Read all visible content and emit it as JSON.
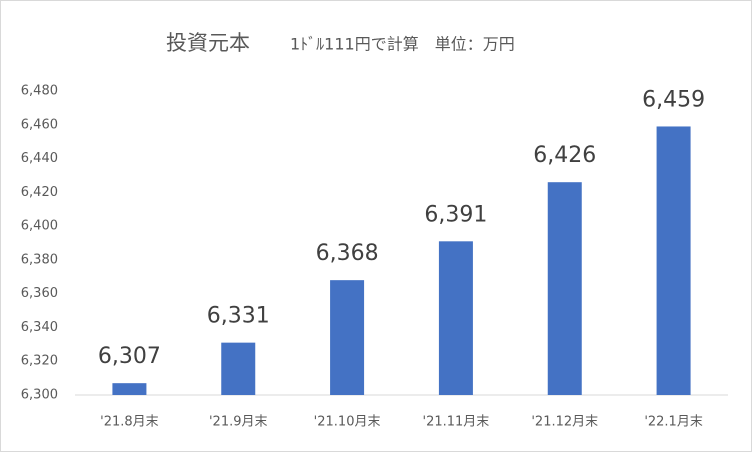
{
  "chart_data": {
    "type": "bar",
    "title": "投資元本",
    "subtitle": "1ﾄﾞﾙ111円で計算　単位：万円",
    "categories": [
      "'21.8月末",
      "'21.9月末",
      "'21.10月末",
      "'21.11月末",
      "'21.12月末",
      "'22.1月末"
    ],
    "values": [
      6307,
      6331,
      6368,
      6391,
      6426,
      6459
    ],
    "value_labels": [
      "6,307",
      "6,331",
      "6,368",
      "6,391",
      "6,426",
      "6,459"
    ],
    "color": "#4472c4",
    "ylim": [
      6300,
      6480
    ],
    "yticks": [
      {
        "value": 6300,
        "label": "6,300"
      },
      {
        "value": 6320,
        "label": "6,320"
      },
      {
        "value": 6340,
        "label": "6,340"
      },
      {
        "value": 6360,
        "label": "6,360"
      },
      {
        "value": 6380,
        "label": "6,380"
      },
      {
        "value": 6400,
        "label": "6,400"
      },
      {
        "value": 6420,
        "label": "6,420"
      },
      {
        "value": 6440,
        "label": "6,440"
      },
      {
        "value": 6460,
        "label": "6,460"
      },
      {
        "value": 6480,
        "label": "6,480"
      }
    ],
    "grid": false
  }
}
